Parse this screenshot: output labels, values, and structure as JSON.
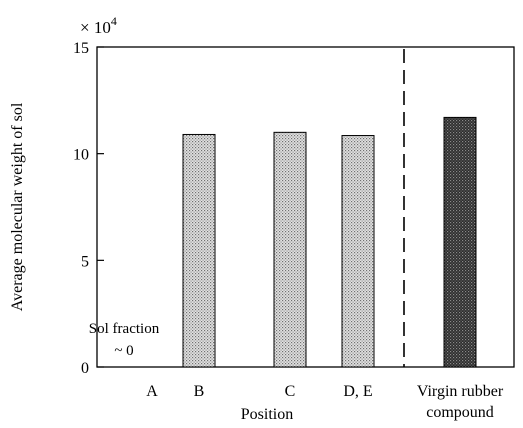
{
  "chart_data": {
    "type": "bar",
    "title": "",
    "xlabel": "Position",
    "ylabel": "Average molecular weight of  sol",
    "y_multiplier": {
      "base": "× 10",
      "exponent": "4"
    },
    "ylim": [
      0,
      15
    ],
    "yticks": [
      0,
      5,
      10,
      15
    ],
    "grid": false,
    "legend": "none",
    "categories": [
      "A",
      "B",
      "C",
      "D, E",
      "Virgin rubber compound"
    ],
    "category_label_lines": [
      [
        "A"
      ],
      [
        "B"
      ],
      [
        "C"
      ],
      [
        "D, E"
      ],
      [
        "Virgin rubber",
        "compound"
      ]
    ],
    "values": [
      0,
      10.9,
      11.0,
      10.85,
      11.7
    ],
    "bar_colors": [
      "#ffffff",
      "#c9c9c9",
      "#c9c9c9",
      "#c9c9c9",
      "#3a3a3a"
    ],
    "annotation": {
      "line1": "Sol fraction",
      "line2": "~ 0"
    },
    "separator": "dashed vertical line before Virgin rubber compound"
  }
}
